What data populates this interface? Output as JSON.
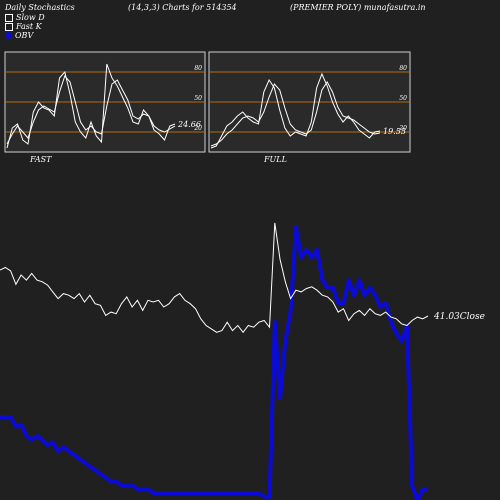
{
  "header": {
    "left": "Daily Stochastics",
    "mid": "(14,3,3) Charts for 514354",
    "right": "(PREMIER POLY) munafasutra.in"
  },
  "legend": [
    {
      "label": "Slow  D",
      "swatch": "box"
    },
    {
      "label": "Fast K",
      "swatch": "box"
    },
    {
      "label": "OBV",
      "swatch": "dot"
    }
  ],
  "colors": {
    "background": "#202020",
    "panel": "#2a2a2a",
    "level_line": "#b46a14",
    "line": "#ffffff",
    "obv": "#0b0bd4"
  },
  "chart_data": [
    {
      "type": "line",
      "name": "FAST",
      "title": "FAST",
      "ylim": [
        0,
        100
      ],
      "levels": [
        20,
        50,
        80
      ],
      "level_labels": [
        "20",
        "50",
        "80"
      ],
      "last_value_label": "24.66",
      "series": [
        {
          "name": "Slow D",
          "values": [
            8,
            18,
            26,
            20,
            14,
            30,
            42,
            46,
            43,
            40,
            60,
            76,
            70,
            50,
            30,
            22,
            26,
            20,
            18,
            46,
            68,
            72,
            62,
            52,
            36,
            33,
            38,
            36,
            26,
            22,
            20,
            23,
            26
          ]
        },
        {
          "name": "Fast K",
          "values": [
            4,
            24,
            28,
            12,
            8,
            40,
            50,
            44,
            42,
            36,
            74,
            80,
            58,
            30,
            20,
            14,
            30,
            16,
            10,
            88,
            74,
            66,
            55,
            44,
            30,
            28,
            42,
            36,
            22,
            18,
            12,
            26,
            28
          ]
        }
      ]
    },
    {
      "type": "line",
      "name": "FULL",
      "title": "FULL",
      "ylim": [
        0,
        100
      ],
      "levels": [
        20,
        50,
        80
      ],
      "level_labels": [
        "20",
        "50",
        "80"
      ],
      "last_value_label": "19.55",
      "series": [
        {
          "name": "Slow D",
          "values": [
            6,
            8,
            12,
            18,
            22,
            28,
            34,
            36,
            34,
            30,
            40,
            55,
            68,
            62,
            44,
            28,
            22,
            20,
            18,
            22,
            40,
            62,
            70,
            60,
            45,
            36,
            34,
            32,
            28,
            24,
            20,
            18,
            19
          ]
        },
        {
          "name": "Fast K",
          "values": [
            4,
            6,
            16,
            26,
            30,
            36,
            40,
            34,
            30,
            28,
            60,
            72,
            64,
            42,
            24,
            16,
            20,
            18,
            16,
            30,
            64,
            78,
            66,
            50,
            38,
            30,
            36,
            30,
            22,
            18,
            14,
            20,
            21
          ]
        }
      ]
    },
    {
      "type": "line",
      "name": "price",
      "last_value_label": "41.03",
      "last_label_suffix": "Close",
      "series": [
        {
          "name": "Close",
          "values": [
            46.5,
            46.8,
            46.4,
            44.8,
            45.9,
            45.3,
            46.1,
            45.3,
            45.1,
            44.7,
            43.9,
            43.1,
            43.7,
            43.5,
            43.1,
            43.7,
            42.7,
            43.5,
            42.5,
            42.3,
            41.1,
            41.5,
            41.3,
            42.5,
            43.3,
            42.1,
            42.9,
            41.7,
            42.9,
            42.7,
            42.9,
            42.1,
            42.5,
            43.3,
            43.7,
            42.9,
            42.5,
            41.9,
            40.7,
            39.9,
            39.5,
            39.1,
            39.3,
            40.3,
            39.3,
            39.9,
            39.1,
            39.9,
            39.7,
            40.3,
            40.5,
            39.7,
            52.1,
            47.8,
            45.1,
            43.1,
            44.1,
            43.9,
            44.3,
            44.5,
            44.1,
            43.5,
            43.3,
            42.7,
            41.5,
            41.9,
            40.5,
            41.3,
            41.7,
            41.1,
            41.9,
            41.3,
            41.1,
            41.5,
            40.9,
            40.7,
            40.1,
            39.9,
            40.5,
            40.9,
            40.7,
            41.03
          ]
        },
        {
          "name": "OBV",
          "values": [
            20,
            20,
            20,
            17.5,
            18,
            15,
            14,
            15,
            14,
            12.6,
            13.3,
            11,
            12.1,
            11,
            10,
            9,
            8,
            7,
            6,
            5,
            4,
            3,
            3,
            2,
            2,
            2,
            1,
            1,
            1,
            0,
            0,
            0,
            0,
            0,
            0,
            0,
            0,
            0,
            0,
            0,
            0,
            0,
            0,
            0,
            0,
            0,
            0,
            0,
            0,
            0,
            -1,
            -1,
            45,
            25,
            40,
            48,
            70,
            62,
            64,
            62,
            64,
            56,
            54,
            54,
            50,
            50,
            56,
            52,
            56,
            52,
            54,
            52,
            49,
            50,
            45,
            42,
            40,
            44,
            2,
            -2,
            1,
            1
          ]
        }
      ]
    }
  ]
}
